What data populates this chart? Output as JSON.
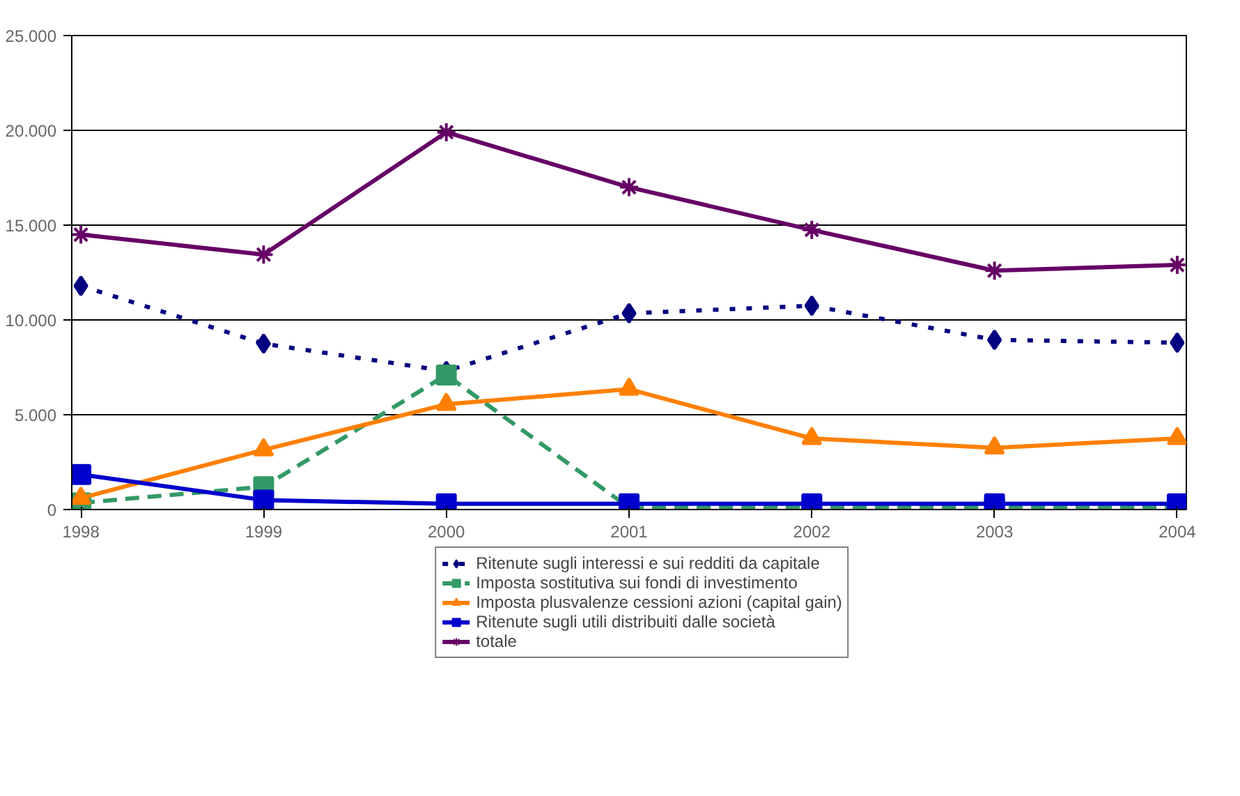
{
  "chart_data": {
    "type": "line",
    "categories": [
      "1998",
      "1999",
      "2000",
      "2001",
      "2002",
      "2003",
      "2004"
    ],
    "ylim": [
      0,
      25000
    ],
    "yticks": [
      {
        "value": 0,
        "label": "0"
      },
      {
        "value": 5000,
        "label": "5.000"
      },
      {
        "value": 10000,
        "label": "10.000"
      },
      {
        "value": 15000,
        "label": "15.000"
      },
      {
        "value": 20000,
        "label": "20.000"
      },
      {
        "value": 25000,
        "label": "25.000"
      }
    ],
    "grid": "y",
    "legend": "bottom",
    "series": [
      {
        "name": "Ritenute sugli interessi e sui redditi da capitale",
        "color": "#000080",
        "marker": "diamond",
        "line_style": "dotted",
        "values": [
          11800,
          8750,
          7300,
          10350,
          10750,
          8950,
          8800
        ]
      },
      {
        "name": "Imposta sostitutiva sui fondi di investimento",
        "color": "#339966",
        "marker": "square",
        "line_style": "dashed",
        "values": [
          350,
          1200,
          7100,
          100,
          100,
          100,
          100
        ]
      },
      {
        "name": "Imposta plusvalenze cessioni azioni (capital gain)",
        "color": "#ff8000",
        "marker": "triangle",
        "line_style": "solid",
        "values": [
          600,
          3150,
          5550,
          6350,
          3750,
          3250,
          3750
        ]
      },
      {
        "name": "Ritenute sugli utili distribuiti dalle società",
        "color": "#0000cc",
        "marker": "square",
        "line_style": "solid",
        "values": [
          1850,
          500,
          300,
          300,
          300,
          300,
          300
        ]
      },
      {
        "name": "totale",
        "color": "#660066",
        "marker": "cross",
        "line_style": "solid",
        "values": [
          14500,
          13450,
          19900,
          17000,
          14750,
          12600,
          12900
        ]
      }
    ]
  }
}
